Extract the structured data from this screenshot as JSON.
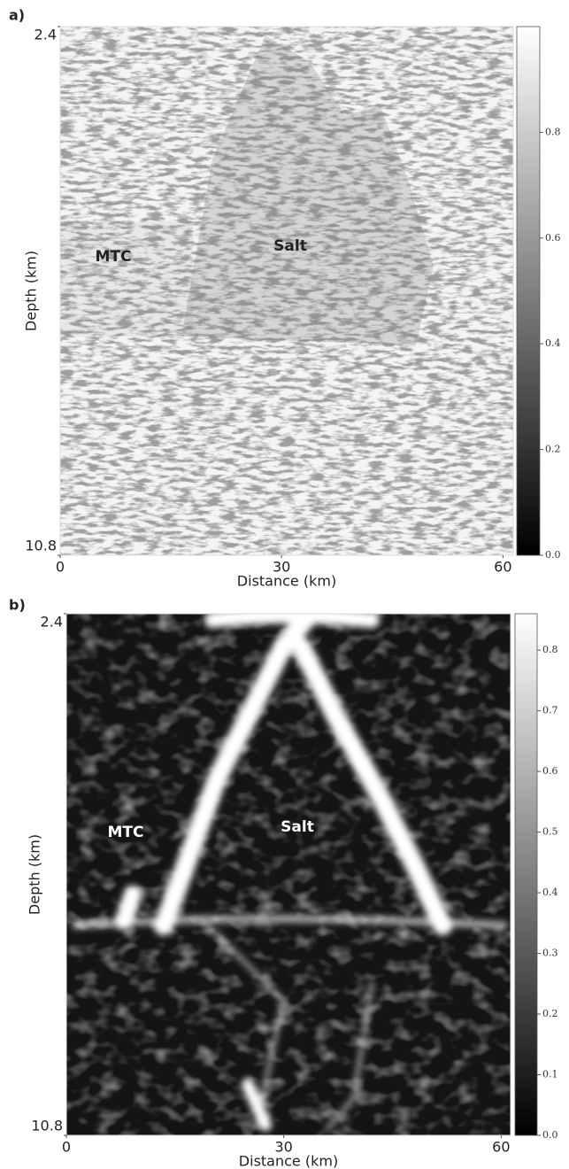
{
  "chart_data": [
    {
      "type": "image",
      "panel_label": "a)",
      "xlabel": "Distance (km)",
      "ylabel": "Depth (km)",
      "xlim": [
        0,
        61.4
      ],
      "xticks": [
        0,
        30,
        60
      ],
      "ylim": [
        2.4,
        10.8
      ],
      "yticks": [
        2.4,
        10.8
      ],
      "annotations": [
        "MTC",
        "Salt"
      ],
      "colormap": "gray",
      "clim": [
        0,
        1
      ],
      "cticks": [
        {
          "value": 0,
          "label": "0.0"
        },
        0.2,
        0.4,
        0.6,
        0.8
      ]
    },
    {
      "type": "image",
      "panel_label": "b)",
      "xlabel": "Distance (km)",
      "ylabel": "Depth (km)",
      "xlim": [
        0,
        61.3
      ],
      "xticks": [
        0,
        30,
        60
      ],
      "ylim": [
        2.4,
        10.8
      ],
      "yticks": [
        2.4,
        10.8
      ],
      "annotations": [
        "MTC",
        "Salt"
      ],
      "colormap": "gray",
      "clim": [
        0,
        0.86
      ],
      "cticks": [
        {
          "value": 0,
          "label": "0.0"
        },
        0.1,
        0.2,
        0.3,
        0.4,
        0.5,
        0.6,
        0.7,
        0.8
      ]
    }
  ]
}
